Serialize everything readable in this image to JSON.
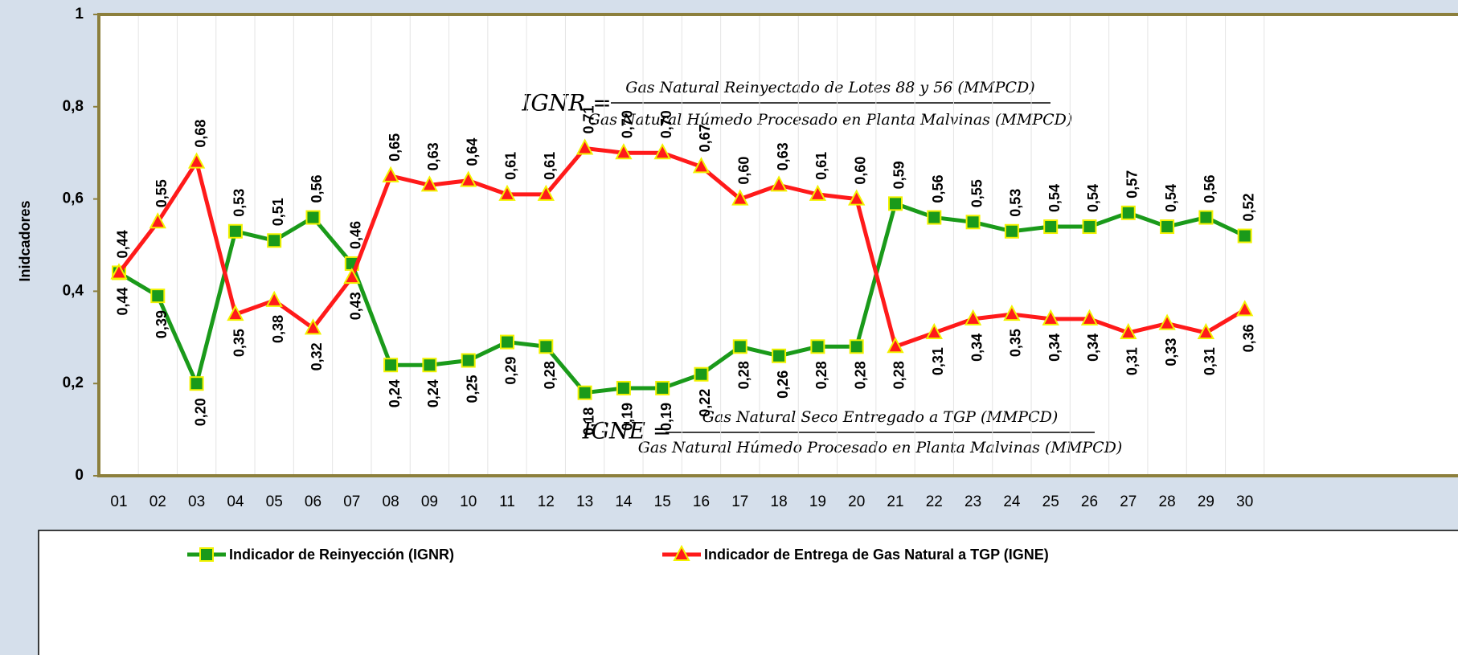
{
  "chart_data": {
    "type": "line",
    "y_label": "Inidcadores",
    "categories": [
      "01",
      "02",
      "03",
      "04",
      "05",
      "06",
      "07",
      "08",
      "09",
      "10",
      "11",
      "12",
      "13",
      "14",
      "15",
      "16",
      "17",
      "18",
      "19",
      "20",
      "21",
      "22",
      "23",
      "24",
      "25",
      "26",
      "27",
      "28",
      "29",
      "30"
    ],
    "series": [
      {
        "name": "Indicador de Reinyección (IGNR)",
        "color": "#1a9a1a",
        "marker": "square",
        "values": [
          0.44,
          0.39,
          0.2,
          0.53,
          0.51,
          0.56,
          0.46,
          0.24,
          0.24,
          0.25,
          0.29,
          0.28,
          0.18,
          0.19,
          0.19,
          0.22,
          0.28,
          0.26,
          0.28,
          0.28,
          0.59,
          0.56,
          0.55,
          0.53,
          0.54,
          0.54,
          0.57,
          0.54,
          0.56,
          0.52
        ],
        "value_labels": [
          "0,44",
          "0,39",
          "0,20",
          "0,53",
          "0,51",
          "0,56",
          "0,46",
          "0,24",
          "0,24",
          "0,25",
          "0,29",
          "0,28",
          "0,18",
          "0,19",
          "0,19",
          "0,22",
          "0,28",
          "0,26",
          "0,28",
          "0,28",
          "0,59",
          "0,56",
          "0,55",
          "0,53",
          "0,54",
          "0,54",
          "0,57",
          "0,54",
          "0,56",
          "0,52"
        ]
      },
      {
        "name": "Indicador de Entrega de Gas Natural a TGP (IGNE)",
        "color": "#ff1a1a",
        "marker": "triangle",
        "values": [
          0.44,
          0.55,
          0.68,
          0.35,
          0.38,
          0.32,
          0.43,
          0.65,
          0.63,
          0.64,
          0.61,
          0.61,
          0.71,
          0.7,
          0.7,
          0.67,
          0.6,
          0.63,
          0.61,
          0.6,
          0.28,
          0.31,
          0.34,
          0.35,
          0.34,
          0.34,
          0.31,
          0.33,
          0.31,
          0.36
        ],
        "value_labels": [
          "0,44",
          "0,55",
          "0,68",
          "0,35",
          "0,38",
          "0,32",
          "0,43",
          "0,65",
          "0,63",
          "0,64",
          "0,61",
          "0,61",
          "0,71",
          "0,70",
          "0,70",
          "0,67",
          "0,60",
          "0,63",
          "0,61",
          "0,60",
          "0,28",
          "0,31",
          "0,34",
          "0,35",
          "0,34",
          "0,34",
          "0,31",
          "0,33",
          "0,31",
          "0,36"
        ]
      }
    ],
    "ylim": [
      0,
      1
    ],
    "yticks": [
      0,
      {
        "value": 0.2,
        "label": "0,2"
      },
      {
        "value": 0.4,
        "label": "0,4"
      },
      {
        "value": 0.6,
        "label": "0,6"
      },
      {
        "value": 0.8,
        "label": "0,8"
      },
      1
    ],
    "annotations": [
      {
        "label": "IGNR =",
        "numerator": "Gas Natural Reinyectado de Lotes 88 y 56 (MMPCD)",
        "denominator": "Gas Natural Húmedo Procesado en Planta Malvinas (MMPCD)"
      },
      {
        "label": "IGNE =",
        "numerator": "Gas Natural Seco Entregado a TGP (MMPCD)",
        "denominator": "Gas Natural Húmedo Procesado en Planta Malvinas (MMPCD)"
      }
    ],
    "legend": "bottom"
  }
}
